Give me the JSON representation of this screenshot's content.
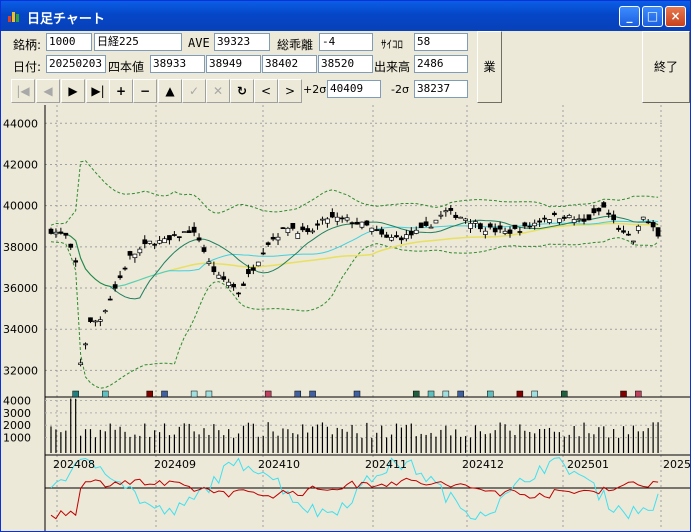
{
  "window": {
    "title": "日足チャート",
    "min_glyph": "_",
    "max_glyph": "□",
    "close_glyph": "×"
  },
  "form": {
    "code_label": "銘柄:",
    "code": "1000",
    "name": "日経225",
    "ave_label": "AVE",
    "ave": "39323",
    "deviation_label": "総乖離",
    "deviation": "-4",
    "dice_label": "ｻｲｺﾛ",
    "dice": "58",
    "date_label": "日付:",
    "date": "20250203",
    "ohlc_label": "四本値",
    "open": "38933",
    "high": "38949",
    "low": "38402",
    "close": "38520",
    "volume_label": "出来高",
    "volume": "2486",
    "plus2s_label": "+2σ",
    "plus2s": "40409",
    "minus2s_label": "-2σ",
    "minus2s": "38237",
    "results_button": "業績",
    "exit_button": "終了"
  },
  "toolbar": [
    "|◀",
    "◀",
    "▶",
    "▶|",
    "+",
    "−",
    "▲",
    "✓",
    "✕",
    "↻",
    "<",
    ">"
  ],
  "chart_data": {
    "type": "candlestick",
    "price_ticks": [
      "44000",
      "42000",
      "40000",
      "38000",
      "36000",
      "34000",
      "32000"
    ],
    "volume_ticks": [
      "4000",
      "3000",
      "2000",
      "1000"
    ],
    "x_labels": [
      "202408",
      "202409",
      "202410",
      "202411",
      "202412",
      "202501",
      "2025"
    ],
    "ylim": [
      31000,
      44500
    ],
    "last": {
      "open": 38933,
      "high": 38949,
      "low": 38402,
      "close": 38520,
      "volume": 2486,
      "upper_band": 40409,
      "lower_band": 38237
    },
    "colors": {
      "bg": "#ECE9D8",
      "band": "#2E8B2E",
      "ma_yellow": "#E8E060",
      "ma_cyan": "#40D0E0",
      "ma_green": "#208060",
      "osc_red": "#C00000",
      "osc_cyan": "#40E0F0"
    }
  }
}
